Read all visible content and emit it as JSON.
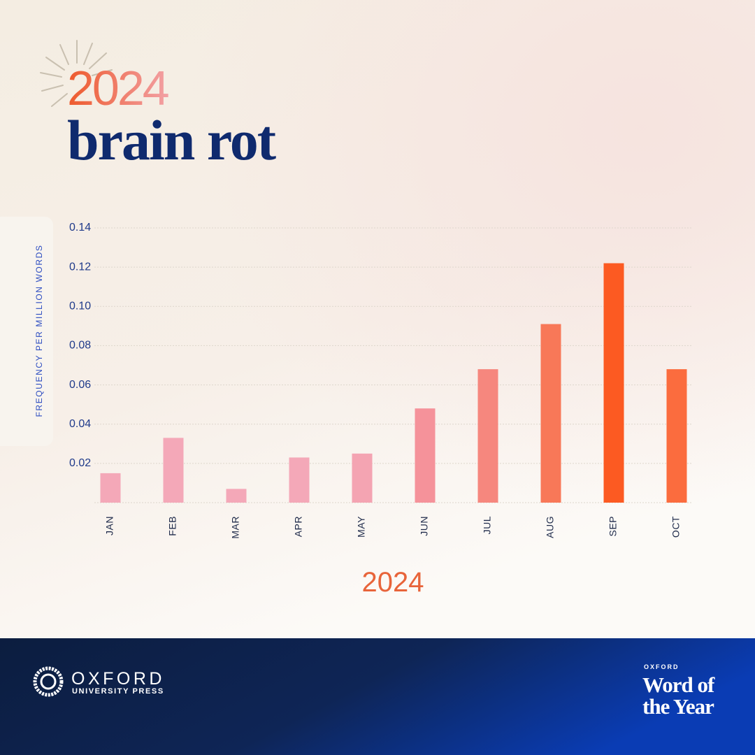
{
  "header": {
    "year": "2024",
    "word": "brain rot"
  },
  "chart_data": {
    "type": "bar",
    "y_label": "FREQUENCY PER MILLION WORDS",
    "x_label": "2024",
    "categories": [
      "JAN",
      "FEB",
      "MAR",
      "APR",
      "MAY",
      "JUN",
      "JUL",
      "AUG",
      "SEP",
      "OCT"
    ],
    "values": [
      0.015,
      0.033,
      0.007,
      0.023,
      0.025,
      0.048,
      0.068,
      0.091,
      0.122,
      0.068
    ],
    "colors": [
      "#f4a8b8",
      "#f4a8b8",
      "#f4a8b8",
      "#f4a8b8",
      "#f4a4b2",
      "#f5929a",
      "#f6877e",
      "#f87858",
      "#fc5a22",
      "#fb6c3e"
    ],
    "ylim": [
      0,
      0.14
    ],
    "yticks": [
      0.02,
      0.04,
      0.06,
      0.08,
      {
        "value": 0.1,
        "label": "0.10"
      },
      0.12,
      0.14
    ],
    "grid": true
  },
  "footer": {
    "publisher": "OXFORD",
    "publisher_sub": "UNIVERSITY PRESS",
    "brand_small": "OXFORD",
    "brand_line1": "Word of",
    "brand_line2": "the Year"
  }
}
